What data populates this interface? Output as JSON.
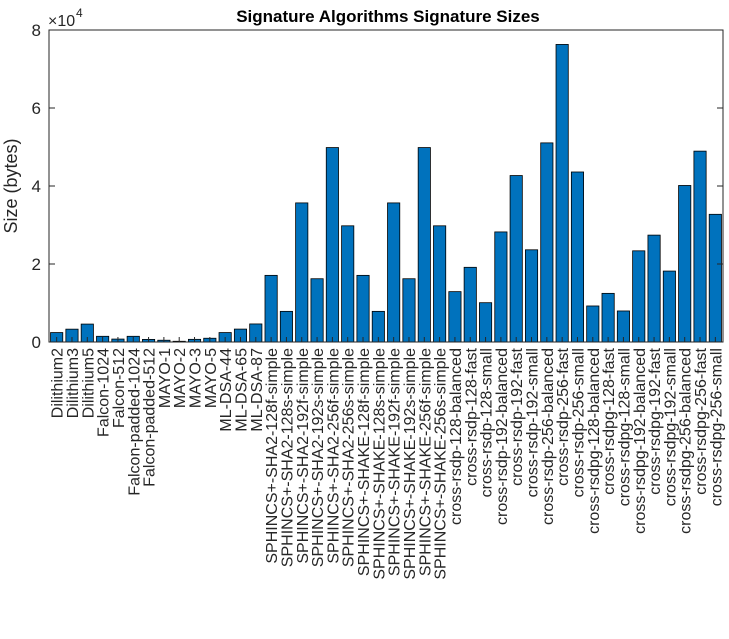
{
  "chart_data": {
    "type": "bar",
    "title": "Signature Algorithms Signature Sizes",
    "ylabel": "Size (bytes)",
    "xlabel": "",
    "y_exponent_label": "×10",
    "y_exponent_power": "4",
    "ylim": [
      0,
      80000
    ],
    "yticks": [
      0,
      20000,
      40000,
      60000,
      80000
    ],
    "ytick_labels": [
      "0",
      "2",
      "4",
      "6",
      "8"
    ],
    "grid": false,
    "bar_color": "#0072bd",
    "categories": [
      "Dilithium2",
      "Dilithium3",
      "Dilithium5",
      "Falcon-1024",
      "Falcon-512",
      "Falcon-padded-1024",
      "Falcon-padded-512",
      "MAYO-1",
      "MAYO-2",
      "MAYO-3",
      "MAYO-5",
      "ML-DSA-44",
      "ML-DSA-65",
      "ML-DSA-87",
      "SPHINCS+-SHA2-128f-simple",
      "SPHINCS+-SHA2-128s-simple",
      "SPHINCS+-SHA2-192f-simple",
      "SPHINCS+-SHA2-192s-simple",
      "SPHINCS+-SHA2-256f-simple",
      "SPHINCS+-SHA2-256s-simple",
      "SPHINCS+-SHAKE-128f-simple",
      "SPHINCS+-SHAKE-128s-simple",
      "SPHINCS+-SHAKE-192f-simple",
      "SPHINCS+-SHAKE-192s-simple",
      "SPHINCS+-SHAKE-256f-simple",
      "SPHINCS+-SHAKE-256s-simple",
      "cross-rsdp-128-balanced",
      "cross-rsdp-128-fast",
      "cross-rsdp-128-small",
      "cross-rsdp-192-balanced",
      "cross-rsdp-192-fast",
      "cross-rsdp-192-small",
      "cross-rsdp-256-balanced",
      "cross-rsdp-256-fast",
      "cross-rsdp-256-small",
      "cross-rsdpg-128-balanced",
      "cross-rsdpg-128-fast",
      "cross-rsdpg-128-small",
      "cross-rsdpg-192-balanced",
      "cross-rsdpg-192-fast",
      "cross-rsdpg-192-small",
      "cross-rsdpg-256-balanced",
      "cross-rsdpg-256-fast",
      "cross-rsdpg-256-small"
    ],
    "values": [
      2420,
      3293,
      4595,
      1462,
      752,
      1462,
      666,
      454,
      186,
      681,
      964,
      2420,
      3309,
      4627,
      17088,
      7856,
      35664,
      16224,
      49856,
      29792,
      17088,
      7856,
      35664,
      16224,
      49856,
      29792,
      12912,
      19152,
      10080,
      28222,
      42682,
      23642,
      51056,
      76298,
      43592,
      9236,
      12472,
      7956,
      23380,
      27404,
      18188,
      40134,
      48938,
      32742
    ]
  }
}
